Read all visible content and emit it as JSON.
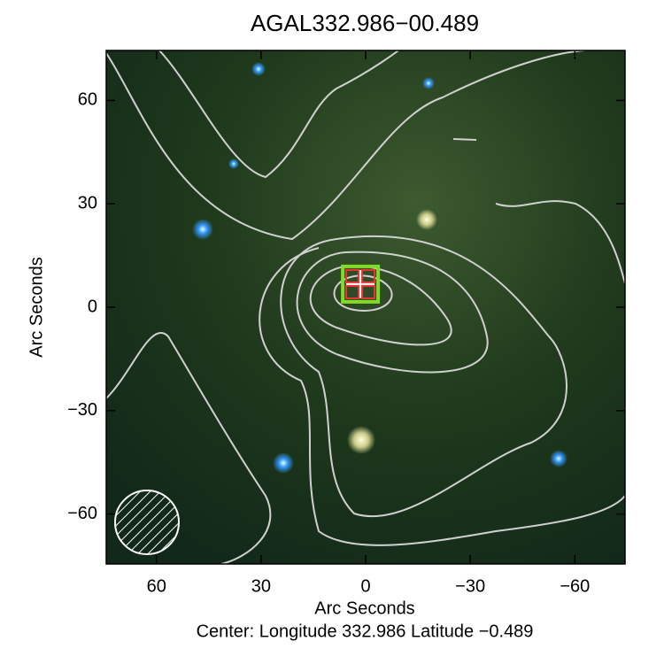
{
  "chart_data": {
    "type": "image",
    "title": "AGAL332.986−00.489",
    "xlabel": "Arc Seconds",
    "ylabel": "Arc Seconds",
    "subtitle": "Center:  Longitude 332.986 Latitude −0.489",
    "xlim": [
      74.4,
      -74.4
    ],
    "ylim": [
      -74.5,
      74.5
    ],
    "xticks": [
      60,
      30,
      0,
      {
        "value": -30,
        "label": "−30"
      },
      {
        "value": -60,
        "label": "−60"
      }
    ],
    "yticks": [
      {
        "value": -60,
        "label": "−60"
      },
      {
        "value": -30,
        "label": "−30"
      },
      0,
      30,
      60
    ]
  }
}
